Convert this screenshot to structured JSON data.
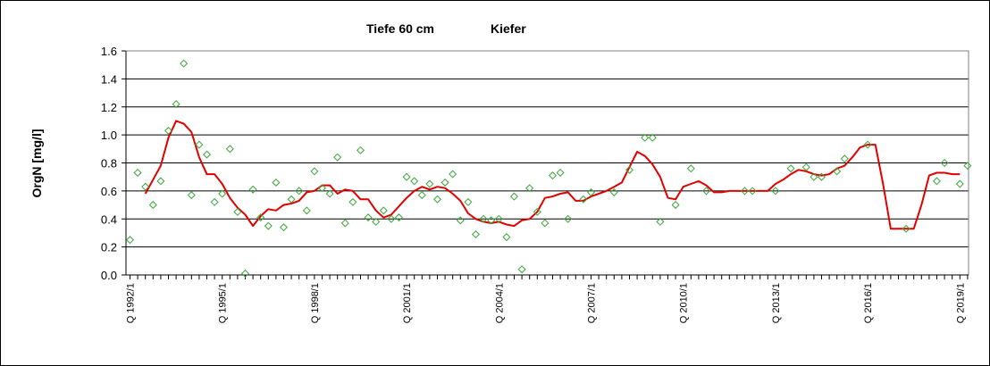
{
  "chart_data": {
    "type": "scatter",
    "title_left": "Tiefe  60 cm",
    "title_right": "Kiefer",
    "xlabel": "",
    "ylabel": "OrgN [mg/l]",
    "ylim": [
      0,
      1.6
    ],
    "yticks": [
      "0.0",
      "0.2",
      "0.4",
      "0.6",
      "0.8",
      "1.0",
      "1.2",
      "1.4",
      "1.6"
    ],
    "grid": "horizontal",
    "x_range_quarters": [
      0,
      109
    ],
    "x_tick_labels": [
      {
        "q": 0,
        "label": "Q 1992/1"
      },
      {
        "q": 12,
        "label": "Q 1995/1"
      },
      {
        "q": 24,
        "label": "Q 1998/1"
      },
      {
        "q": 36,
        "label": "Q 2001/1"
      },
      {
        "q": 48,
        "label": "Q 2004/1"
      },
      {
        "q": 60,
        "label": "Q 2007/1"
      },
      {
        "q": 72,
        "label": "Q 2010/1"
      },
      {
        "q": 84,
        "label": "Q 2013/1"
      },
      {
        "q": 96,
        "label": "Q 2016/1"
      },
      {
        "q": 108,
        "label": "Q 2019/1"
      }
    ],
    "series": [
      {
        "kind": "scatter",
        "marker": "diamond",
        "color": "#3aa53a",
        "points": [
          [
            0,
            0.25
          ],
          [
            1,
            0.73
          ],
          [
            2,
            0.63
          ],
          [
            3,
            0.5
          ],
          [
            4,
            0.67
          ],
          [
            5,
            1.03
          ],
          [
            6,
            1.22
          ],
          [
            7,
            1.51
          ],
          [
            8,
            0.57
          ],
          [
            9,
            0.93
          ],
          [
            10,
            0.86
          ],
          [
            11,
            0.52
          ],
          [
            12,
            0.58
          ],
          [
            13,
            0.9
          ],
          [
            14,
            0.45
          ],
          [
            15,
            0.01
          ],
          [
            16,
            0.61
          ],
          [
            17,
            0.41
          ],
          [
            18,
            0.35
          ],
          [
            19,
            0.66
          ],
          [
            20,
            0.34
          ],
          [
            21,
            0.54
          ],
          [
            22,
            0.6
          ],
          [
            23,
            0.46
          ],
          [
            24,
            0.74
          ],
          [
            25,
            0.62
          ],
          [
            26,
            0.58
          ],
          [
            27,
            0.84
          ],
          [
            28,
            0.37
          ],
          [
            29,
            0.52
          ],
          [
            30,
            0.89
          ],
          [
            31,
            0.41
          ],
          [
            32,
            0.38
          ],
          [
            33,
            0.46
          ],
          [
            34,
            0.4
          ],
          [
            35,
            0.41
          ],
          [
            36,
            0.7
          ],
          [
            37,
            0.67
          ],
          [
            38,
            0.57
          ],
          [
            39,
            0.65
          ],
          [
            40,
            0.54
          ],
          [
            41,
            0.66
          ],
          [
            42,
            0.72
          ],
          [
            43,
            0.39
          ],
          [
            44,
            0.52
          ],
          [
            45,
            0.29
          ],
          [
            46,
            0.4
          ],
          [
            47,
            0.39
          ],
          [
            48,
            0.4
          ],
          [
            49,
            0.27
          ],
          [
            50,
            0.56
          ],
          [
            51,
            0.04
          ],
          [
            52,
            0.62
          ],
          [
            53,
            0.45
          ],
          [
            54,
            0.37
          ],
          [
            55,
            0.71
          ],
          [
            56,
            0.73
          ],
          [
            57,
            0.4
          ],
          [
            59,
            0.54
          ],
          [
            60,
            0.59
          ],
          [
            63,
            0.59
          ],
          [
            65,
            0.75
          ],
          [
            67,
            0.98
          ],
          [
            68,
            0.98
          ],
          [
            69,
            0.38
          ],
          [
            71,
            0.5
          ],
          [
            73,
            0.76
          ],
          [
            75,
            0.6
          ],
          [
            80,
            0.6
          ],
          [
            81,
            0.6
          ],
          [
            84,
            0.6
          ],
          [
            86,
            0.76
          ],
          [
            88,
            0.77
          ],
          [
            89,
            0.7
          ],
          [
            90,
            0.7
          ],
          [
            92,
            0.74
          ],
          [
            93,
            0.83
          ],
          [
            96,
            0.93
          ],
          [
            101,
            0.33
          ],
          [
            105,
            0.67
          ],
          [
            106,
            0.8
          ],
          [
            108,
            0.65
          ],
          [
            109,
            0.78
          ]
        ]
      },
      {
        "kind": "line",
        "name": "",
        "color": "#e00000",
        "points": [
          [
            2,
            0.58
          ],
          [
            3,
            0.68
          ],
          [
            4,
            0.78
          ],
          [
            5,
            0.98
          ],
          [
            6,
            1.1
          ],
          [
            7,
            1.08
          ],
          [
            8,
            1.02
          ],
          [
            9,
            0.84
          ],
          [
            10,
            0.72
          ],
          [
            11,
            0.72
          ],
          [
            12,
            0.65
          ],
          [
            13,
            0.55
          ],
          [
            14,
            0.48
          ],
          [
            15,
            0.43
          ],
          [
            16,
            0.35
          ],
          [
            17,
            0.42
          ],
          [
            18,
            0.47
          ],
          [
            19,
            0.46
          ],
          [
            20,
            0.5
          ],
          [
            21,
            0.51
          ],
          [
            22,
            0.53
          ],
          [
            23,
            0.59
          ],
          [
            24,
            0.6
          ],
          [
            25,
            0.64
          ],
          [
            26,
            0.64
          ],
          [
            27,
            0.58
          ],
          [
            28,
            0.61
          ],
          [
            29,
            0.6
          ],
          [
            30,
            0.54
          ],
          [
            31,
            0.54
          ],
          [
            32,
            0.46
          ],
          [
            33,
            0.41
          ],
          [
            34,
            0.43
          ],
          [
            35,
            0.49
          ],
          [
            36,
            0.55
          ],
          [
            37,
            0.6
          ],
          [
            38,
            0.63
          ],
          [
            39,
            0.61
          ],
          [
            40,
            0.63
          ],
          [
            41,
            0.62
          ],
          [
            42,
            0.58
          ],
          [
            43,
            0.53
          ],
          [
            44,
            0.44
          ],
          [
            45,
            0.4
          ],
          [
            46,
            0.38
          ],
          [
            47,
            0.37
          ],
          [
            48,
            0.38
          ],
          [
            49,
            0.36
          ],
          [
            50,
            0.35
          ],
          [
            51,
            0.39
          ],
          [
            52,
            0.4
          ],
          [
            53,
            0.45
          ],
          [
            54,
            0.55
          ],
          [
            55,
            0.56
          ],
          [
            56,
            0.58
          ],
          [
            57,
            0.59
          ],
          [
            58,
            0.53
          ],
          [
            59,
            0.53
          ],
          [
            60,
            0.56
          ],
          [
            61,
            0.58
          ],
          [
            62,
            0.6
          ],
          [
            63,
            0.63
          ],
          [
            64,
            0.66
          ],
          [
            65,
            0.77
          ],
          [
            66,
            0.88
          ],
          [
            67,
            0.85
          ],
          [
            68,
            0.79
          ],
          [
            69,
            0.7
          ],
          [
            70,
            0.55
          ],
          [
            71,
            0.54
          ],
          [
            72,
            0.63
          ],
          [
            73,
            0.65
          ],
          [
            74,
            0.67
          ],
          [
            75,
            0.64
          ],
          [
            76,
            0.59
          ],
          [
            77,
            0.59
          ],
          [
            78,
            0.6
          ],
          [
            79,
            0.6
          ],
          [
            80,
            0.6
          ],
          [
            81,
            0.6
          ],
          [
            82,
            0.6
          ],
          [
            83,
            0.6
          ],
          [
            84,
            0.65
          ],
          [
            85,
            0.68
          ],
          [
            86,
            0.72
          ],
          [
            87,
            0.75
          ],
          [
            88,
            0.74
          ],
          [
            89,
            0.72
          ],
          [
            90,
            0.71
          ],
          [
            91,
            0.72
          ],
          [
            92,
            0.76
          ],
          [
            93,
            0.78
          ],
          [
            94,
            0.84
          ],
          [
            95,
            0.91
          ],
          [
            96,
            0.93
          ],
          [
            97,
            0.93
          ],
          [
            98,
            0.65
          ],
          [
            99,
            0.33
          ],
          [
            100,
            0.33
          ],
          [
            101,
            0.33
          ],
          [
            102,
            0.33
          ],
          [
            103,
            0.5
          ],
          [
            104,
            0.71
          ],
          [
            105,
            0.73
          ],
          [
            106,
            0.73
          ],
          [
            107,
            0.72
          ],
          [
            108,
            0.72
          ]
        ]
      }
    ]
  }
}
